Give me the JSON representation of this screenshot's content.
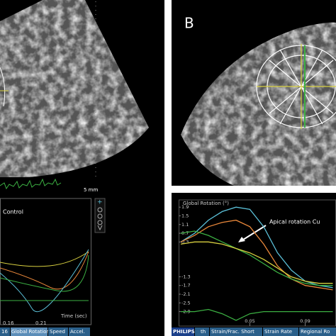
{
  "panel_a": {
    "scale_label": "5 mm",
    "graph_title": "Control",
    "x_ticks": [
      "0.16",
      "0.21"
    ],
    "x_label": "Time (sec)",
    "tabs": [
      "16",
      "Global Rotation",
      "Speed",
      "Accel."
    ]
  },
  "panel_b": {
    "label": "B",
    "tabs": [
      "PHILIPS",
      "th",
      "Strain/Frac. Short",
      "Strain Rate",
      "Regional Ro"
    ]
  },
  "chart_data": {
    "type": "line",
    "title": "Global Rotation (°)",
    "annotation": "Apical rotation Cu",
    "x": [
      0,
      0.01,
      0.02,
      0.03,
      0.04,
      0.05,
      0.06,
      0.07,
      0.08,
      0.09,
      0.1,
      0.11
    ],
    "series": [
      {
        "color": "#5bc0d8",
        "values": [
          0.3,
          0.7,
          1.3,
          1.7,
          1.9,
          1.8,
          1.0,
          -0.2,
          -1.0,
          -1.5,
          -1.7,
          -1.8
        ]
      },
      {
        "color": "#e8873a",
        "values": [
          0.3,
          0.6,
          1.0,
          1.2,
          1.3,
          1.0,
          0.2,
          -0.8,
          -1.4,
          -1.7,
          -1.8,
          -1.9
        ]
      },
      {
        "color": "#3cb043",
        "values": [
          0.7,
          0.8,
          0.6,
          0.3,
          0.0,
          -0.3,
          -0.7,
          -1.1,
          -1.4,
          -1.6,
          -1.7,
          -1.7
        ]
      },
      {
        "color": "#d8d040",
        "values": [
          0.2,
          0.3,
          0.3,
          0.2,
          0.0,
          -0.2,
          -0.5,
          -0.9,
          -1.3,
          -1.5,
          -1.6,
          -1.6
        ]
      },
      {
        "color": "#3cb043",
        "values": [
          -2.9,
          -2.9,
          -2.8,
          -3.0,
          -3.3,
          -3.0,
          -2.9,
          -2.9,
          -2.9,
          -2.9,
          -2.9,
          -2.9
        ]
      }
    ],
    "xlim": [
      0,
      0.11
    ],
    "ylim": [
      -3.5,
      2.2
    ],
    "xticks": [
      0.05,
      0.09
    ],
    "yticks": [
      1.9,
      1.5,
      1.1,
      0.7,
      0.3,
      -1.3,
      -1.7,
      -2.1,
      -2.5,
      -2.9
    ]
  }
}
